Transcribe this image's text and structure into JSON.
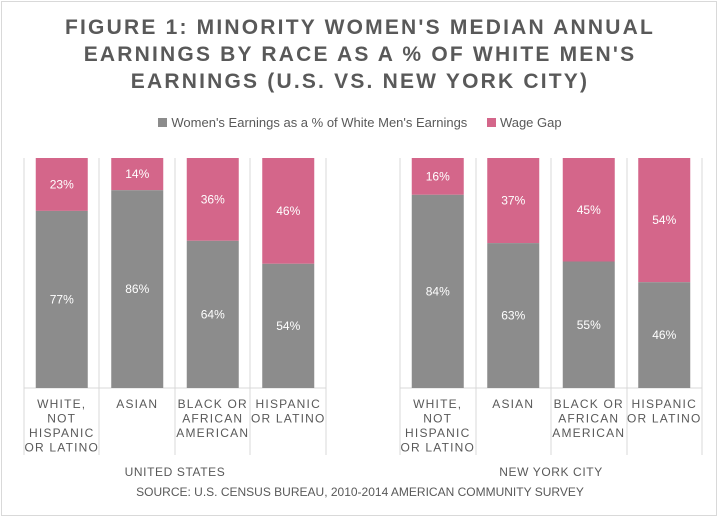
{
  "title_lines": [
    "FIGURE 1: MINORITY WOMEN'S MEDIAN ANNUAL",
    "EARNINGS BY RACE AS A % OF WHITE MEN'S",
    "EARNINGS (U.S. VS. NEW YORK CITY)"
  ],
  "source": "SOURCE: U.S. CENSUS BUREAU, 2010-2014 AMERICAN COMMUNITY SURVEY",
  "colors": {
    "earnings": "#8c8c8c",
    "gap": "#d4668a",
    "text": "#595959",
    "grid": "#d9d9d9"
  },
  "chart_data": {
    "type": "bar",
    "stacked": true,
    "percent_stacked": true,
    "ylim": [
      0,
      100
    ],
    "legend_position": "top",
    "series": [
      {
        "name": "Women's Earnings as a % of White Men's Earnings",
        "values": [
          77,
          86,
          64,
          54,
          84,
          63,
          55,
          46
        ],
        "labels": [
          "77%",
          "86%",
          "64%",
          "54%",
          "84%",
          "63%",
          "55%",
          "46%"
        ]
      },
      {
        "name": "Wage Gap",
        "values": [
          23,
          14,
          36,
          46,
          16,
          37,
          45,
          54
        ],
        "labels": [
          "23%",
          "14%",
          "36%",
          "46%",
          "16%",
          "37%",
          "45%",
          "54%"
        ]
      }
    ],
    "groups": [
      {
        "name": "UNITED STATES",
        "categories": [
          [
            "WHITE,",
            "NOT",
            "HISPANIC",
            "OR LATINO"
          ],
          [
            "ASIAN"
          ],
          [
            "BLACK OR",
            "AFRICAN",
            "AMERICAN"
          ],
          [
            "HISPANIC",
            "OR LATINO"
          ]
        ]
      },
      {
        "name": "NEW YORK CITY",
        "categories": [
          [
            "WHITE,",
            "NOT",
            "HISPANIC",
            "OR LATINO"
          ],
          [
            "ASIAN"
          ],
          [
            "BLACK OR",
            "AFRICAN",
            "AMERICAN"
          ],
          [
            "HISPANIC",
            "OR LATINO"
          ]
        ]
      }
    ]
  }
}
